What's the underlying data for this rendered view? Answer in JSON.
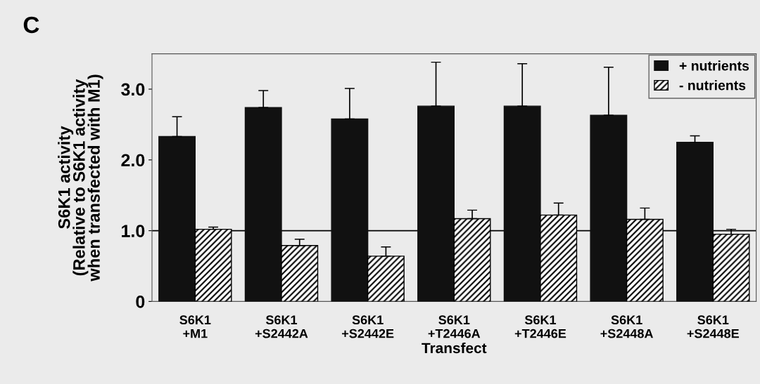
{
  "chart_data": {
    "type": "bar",
    "title": "C",
    "xlabel": "Transfect",
    "ylabel": "S6K1 activity\n(Relative to S6K1 activity\nwhen transfected with M1)",
    "categories": [
      "S6K1\n+M1",
      "S6K1\n+S2442A",
      "S6K1\n+S2442E",
      "S6K1\n+T2446A",
      "S6K1\n+T2446E",
      "S6K1\n+S2448A",
      "S6K1\n+S2448E"
    ],
    "series": [
      {
        "name": "+ nutrients",
        "color": "#111111",
        "values": [
          2.33,
          2.74,
          2.58,
          2.76,
          2.76,
          2.63,
          2.25
        ],
        "errors": [
          [
            2.33,
            2.61
          ],
          [
            2.74,
            2.98
          ],
          [
            2.58,
            3.01
          ],
          [
            2.76,
            3.38
          ],
          [
            2.76,
            3.36
          ],
          [
            2.63,
            3.31
          ],
          [
            2.25,
            2.34
          ]
        ]
      },
      {
        "name": "- nutrients",
        "color": "#000000",
        "values": [
          1.02,
          0.79,
          0.64,
          1.17,
          1.22,
          1.16,
          0.95
        ],
        "errors": [
          [
            1.02,
            1.05
          ],
          [
            0.79,
            0.88
          ],
          [
            0.64,
            0.77
          ],
          [
            1.17,
            1.29
          ],
          [
            1.22,
            1.39
          ],
          [
            1.16,
            1.32
          ],
          [
            0.95,
            1.02
          ]
        ]
      }
    ],
    "ylim": [
      0,
      3.5
    ],
    "yticks": [
      0,
      {
        "value": 1,
        "label": "1.0"
      },
      {
        "value": 2,
        "label": "2.0"
      },
      {
        "value": 3,
        "label": "3.0"
      }
    ],
    "ref_lines": [
      {
        "axis": "y",
        "value": 1,
        "color": "#000000",
        "line_style": "solid"
      }
    ],
    "legend": "top right",
    "grid": false
  }
}
